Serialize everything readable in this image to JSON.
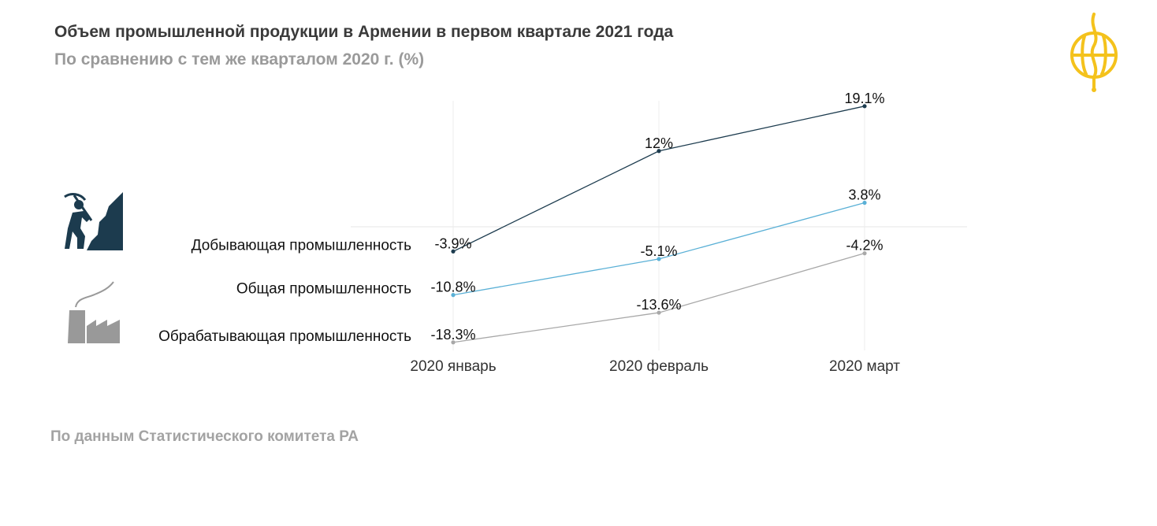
{
  "header": {
    "title": "Объем промышленной продукции в Армении в первом квартале 2021 года",
    "subtitle": "По сравнению с тем же кварталом 2020 г. (%)"
  },
  "footer": {
    "source": "По данным Статистического комитета РА"
  },
  "colors": {
    "mining": "#1c3b4e",
    "total": "#5ab0d6",
    "manufacturing": "#a8a8a8",
    "logo": "#f4c21c"
  },
  "icons": [
    "miner-icon",
    "factory-icon",
    "logo-icon"
  ],
  "chart_data": {
    "type": "line",
    "title": "Объем промышленной продукции в Армении в первом квартале 2021 года",
    "subtitle": "По сравнению с тем же кварталом 2020 г. (%)",
    "categories": [
      "2020 январь",
      "2020 февраль",
      "2020 март"
    ],
    "series": [
      {
        "name": "Добывающая промышленность",
        "values": [
          -3.9,
          12,
          19.1
        ],
        "labels": [
          "-3.9%",
          "12%",
          "19.1%"
        ],
        "color": "#1c3b4e"
      },
      {
        "name": "Общая промышленность",
        "values": [
          -10.8,
          -5.1,
          3.8
        ],
        "labels": [
          "-10.8%",
          "-5.1%",
          "3.8%"
        ],
        "color": "#5ab0d6"
      },
      {
        "name": "Обрабатывающая промышленность",
        "values": [
          -18.3,
          -13.6,
          -4.2
        ],
        "labels": [
          "-18.3%",
          "-13.6%",
          "-4.2%"
        ],
        "color": "#a8a8a8"
      }
    ],
    "grid": true
  }
}
